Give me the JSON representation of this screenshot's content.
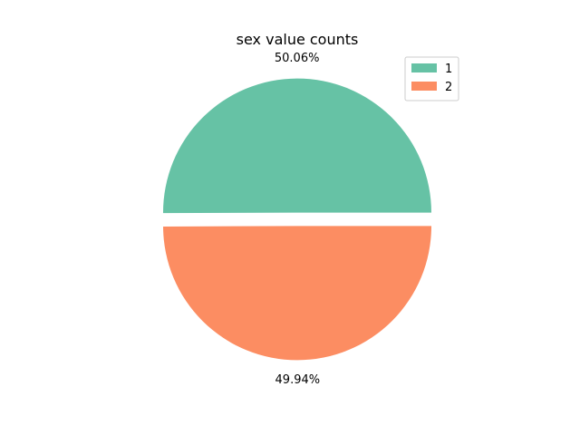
{
  "chart_data": {
    "type": "pie",
    "title": "sex value counts",
    "categories": [
      "1",
      "2"
    ],
    "values": [
      50.06,
      49.94
    ],
    "labels": [
      "50.06%",
      "49.94%"
    ],
    "colors": [
      "#66c2a5",
      "#fc8d62"
    ],
    "explode": [
      0.05,
      0.05
    ],
    "start_angle": 0,
    "legend": {
      "placement": "top-right",
      "entries": [
        "1",
        "2"
      ]
    }
  }
}
